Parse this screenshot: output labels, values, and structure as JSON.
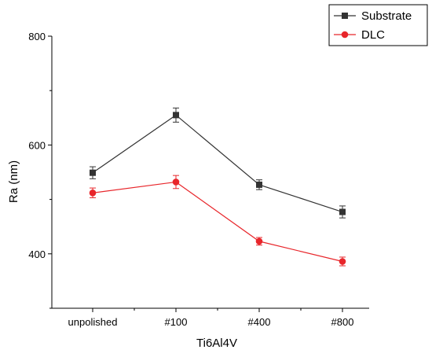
{
  "chart_data": {
    "type": "line",
    "title": "",
    "xlabel": "Ti6Al4V",
    "ylabel": "Ra (nm)",
    "categories": [
      "unpolished",
      "#100",
      "#400",
      "#800"
    ],
    "ylim": [
      300,
      800
    ],
    "yticks": [
      400,
      600,
      800
    ],
    "grid": false,
    "legend_position": "top-right",
    "series": [
      {
        "name": "Substrate",
        "values": [
          549,
          655,
          527,
          477
        ],
        "errors": [
          11,
          13,
          9,
          11
        ],
        "color": "#333333",
        "marker": "square"
      },
      {
        "name": "DLC",
        "values": [
          512,
          532,
          423,
          386
        ],
        "errors": [
          9,
          12,
          7,
          8
        ],
        "color": "#e8262b",
        "marker": "circle"
      }
    ]
  }
}
